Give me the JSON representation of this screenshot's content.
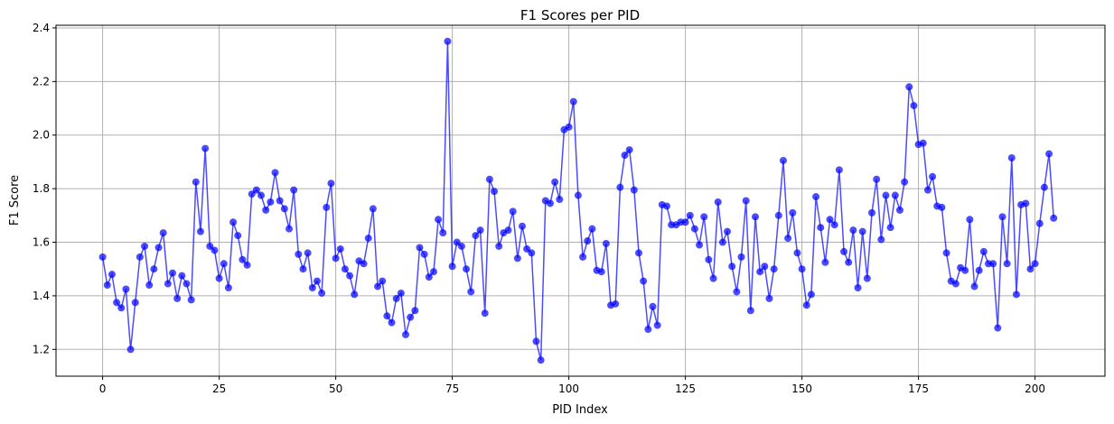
{
  "chart_data": {
    "type": "line",
    "title": "F1 Scores per PID",
    "xlabel": "PID Index",
    "ylabel": "F1 Score",
    "xlim": [
      -10,
      215
    ],
    "ylim": [
      1.1,
      2.41
    ],
    "xticks": [
      0,
      25,
      50,
      75,
      100,
      125,
      150,
      175,
      200
    ],
    "xtick_labels": [
      "0",
      "25",
      "50",
      "75",
      "100",
      "125",
      "150",
      "175",
      "200"
    ],
    "yticks": [
      1.2,
      1.4,
      1.6,
      1.8,
      2.0,
      2.2,
      2.4
    ],
    "ytick_labels": [
      "1.2",
      "1.4",
      "1.6",
      "1.8",
      "2.0",
      "2.2",
      "2.4"
    ],
    "grid": true,
    "marker": "circle",
    "color": "#0000ff",
    "opacity": 0.7,
    "series": [
      {
        "x": [
          0,
          1,
          2,
          3,
          4,
          5,
          6,
          7,
          8,
          9,
          10,
          11,
          12,
          13,
          14,
          15,
          16,
          17,
          18,
          19,
          20,
          21,
          22,
          23,
          24,
          25,
          26,
          27,
          28,
          29,
          30,
          31,
          32,
          33,
          34,
          35,
          36,
          37,
          38,
          39,
          40,
          41,
          42,
          43,
          44,
          45,
          46,
          47,
          48,
          49,
          50,
          51,
          52,
          53,
          54,
          55,
          56,
          57,
          58,
          59,
          60,
          61,
          62,
          63,
          64,
          65,
          66,
          67,
          68,
          69,
          70,
          71,
          72,
          73,
          74,
          75,
          76,
          77,
          78,
          79,
          80,
          81,
          82,
          83,
          84,
          85,
          86,
          87,
          88,
          89,
          90,
          91,
          92,
          93,
          94,
          95,
          96,
          97,
          98,
          99,
          100,
          101,
          102,
          103,
          104,
          105,
          106,
          107,
          108,
          109,
          110,
          111,
          112,
          113,
          114,
          115,
          116,
          117,
          118,
          119,
          120,
          121,
          122,
          123,
          124,
          125,
          126,
          127,
          128,
          129,
          130,
          131,
          132,
          133,
          134,
          135,
          136,
          137,
          138,
          139,
          140,
          141,
          142,
          143,
          144,
          145,
          146,
          147,
          148,
          149,
          150,
          151,
          152,
          153,
          154,
          155,
          156,
          157,
          158,
          159,
          160,
          161,
          162,
          163,
          164,
          165,
          166,
          167,
          168,
          169,
          170,
          171,
          172,
          173,
          174,
          175,
          176,
          177,
          178,
          179,
          180,
          181,
          182,
          183,
          184,
          185,
          186,
          187,
          188,
          189,
          190,
          191,
          192,
          193,
          194,
          195,
          196,
          197,
          198,
          199,
          200,
          201,
          202,
          203,
          204
        ],
        "values": [
          1.545,
          1.44,
          1.48,
          1.375,
          1.355,
          1.425,
          1.2,
          1.375,
          1.545,
          1.585,
          1.44,
          1.5,
          1.58,
          1.635,
          1.445,
          1.485,
          1.39,
          1.475,
          1.445,
          1.385,
          1.825,
          1.64,
          1.95,
          1.585,
          1.57,
          1.465,
          1.52,
          1.43,
          1.675,
          1.625,
          1.535,
          1.515,
          1.78,
          1.795,
          1.775,
          1.72,
          1.75,
          1.86,
          1.755,
          1.725,
          1.65,
          1.795,
          1.555,
          1.5,
          1.56,
          1.43,
          1.455,
          1.41,
          1.73,
          1.82,
          1.54,
          1.575,
          1.5,
          1.475,
          1.405,
          1.53,
          1.52,
          1.615,
          1.725,
          1.435,
          1.455,
          1.325,
          1.3,
          1.39,
          1.41,
          1.255,
          1.32,
          1.345,
          1.58,
          1.555,
          1.47,
          1.49,
          1.685,
          1.635,
          2.35,
          1.51,
          1.6,
          1.585,
          1.5,
          1.415,
          1.625,
          1.645,
          1.335,
          1.835,
          1.79,
          1.585,
          1.635,
          1.645,
          1.715,
          1.54,
          1.66,
          1.575,
          1.56,
          1.23,
          1.16,
          1.755,
          1.745,
          1.825,
          1.76,
          2.02,
          2.03,
          2.125,
          1.775,
          1.545,
          1.605,
          1.65,
          1.495,
          1.49,
          1.595,
          1.365,
          1.37,
          1.805,
          1.925,
          1.945,
          1.795,
          1.56,
          1.455,
          1.275,
          1.36,
          1.29,
          1.74,
          1.735,
          1.665,
          1.665,
          1.675,
          1.675,
          1.7,
          1.65,
          1.59,
          1.695,
          1.535,
          1.465,
          1.75,
          1.6,
          1.64,
          1.51,
          1.415,
          1.545,
          1.755,
          1.345,
          1.695,
          1.49,
          1.51,
          1.39,
          1.5,
          1.7,
          1.905,
          1.615,
          1.71,
          1.56,
          1.5,
          1.365,
          1.405,
          1.77,
          1.655,
          1.525,
          1.685,
          1.665,
          1.87,
          1.565,
          1.525,
          1.645,
          1.43,
          1.64,
          1.465,
          1.71,
          1.835,
          1.61,
          1.775,
          1.655,
          1.775,
          1.72,
          1.825,
          2.18,
          2.11,
          1.965,
          1.97,
          1.795,
          1.845,
          1.735,
          1.73,
          1.56,
          1.455,
          1.445,
          1.505,
          1.495,
          1.685,
          1.435,
          1.495,
          1.565,
          1.52,
          1.52,
          1.28,
          1.695,
          1.52,
          1.915,
          1.405,
          1.74,
          1.745,
          1.5,
          1.52,
          1.67,
          1.805,
          1.93,
          1.69
        ]
      }
    ]
  }
}
